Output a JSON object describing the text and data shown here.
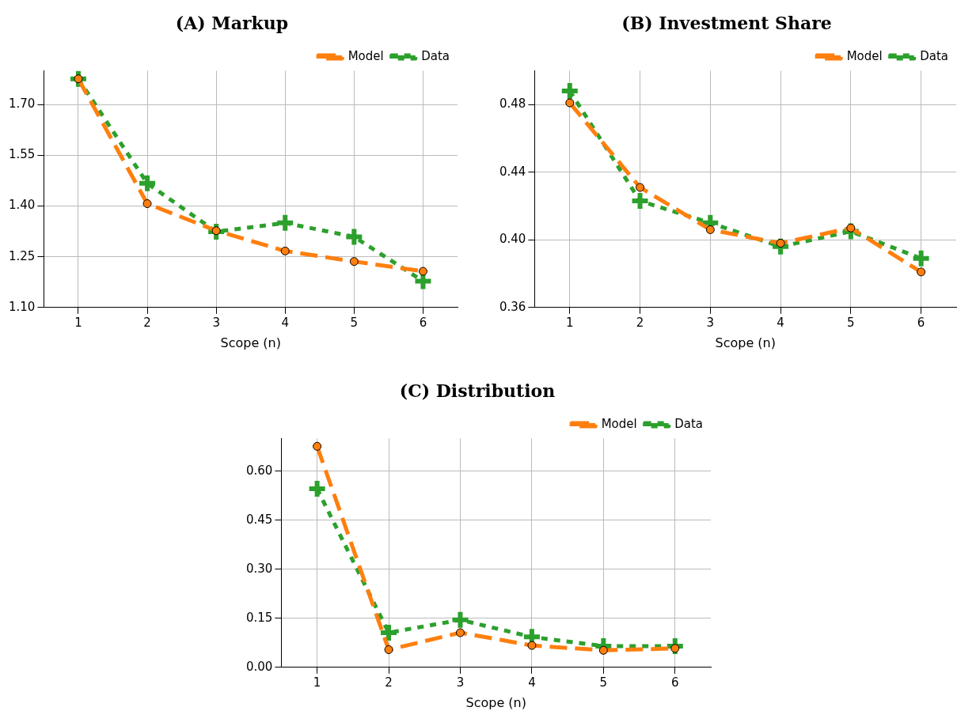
{
  "chart_data": [
    {
      "type": "line",
      "title": "(A) Markup",
      "xlabel": "Scope (n)",
      "categories": [
        "1",
        "2",
        "3",
        "4",
        "5",
        "6"
      ],
      "ylim": [
        1.1,
        1.8
      ],
      "yticks": [
        {
          "value": 1.1,
          "label": "1.10"
        },
        {
          "value": 1.25,
          "label": "1.25"
        },
        {
          "value": 1.4,
          "label": "1.40"
        },
        {
          "value": 1.55,
          "label": "1.55"
        },
        {
          "value": 1.7,
          "label": "1.70"
        }
      ],
      "grid": true,
      "legend": "top right",
      "series": [
        {
          "name": "Model",
          "color": "#ff7f0e",
          "marker": "circle",
          "line_style": "dashed",
          "values": [
            1.776,
            1.407,
            1.327,
            1.267,
            1.236,
            1.207
          ]
        },
        {
          "name": "Data",
          "color": "#2ca02c",
          "marker": "cross",
          "line_style": "dotted",
          "values": [
            1.776,
            1.467,
            1.324,
            1.35,
            1.309,
            1.178
          ]
        }
      ]
    },
    {
      "type": "line",
      "title": "(B) Investment Share",
      "xlabel": "Scope (n)",
      "categories": [
        "1",
        "2",
        "3",
        "4",
        "5",
        "6"
      ],
      "ylim": [
        0.36,
        0.5
      ],
      "yticks": [
        {
          "value": 0.36,
          "label": "0.36"
        },
        {
          "value": 0.4,
          "label": "0.40"
        },
        {
          "value": 0.44,
          "label": "0.44"
        },
        {
          "value": 0.48,
          "label": "0.48"
        }
      ],
      "grid": true,
      "legend": "top right",
      "series": [
        {
          "name": "Model",
          "color": "#ff7f0e",
          "marker": "circle",
          "line_style": "dashed",
          "values": [
            0.481,
            0.431,
            0.406,
            0.398,
            0.407,
            0.381
          ]
        },
        {
          "name": "Data",
          "color": "#2ca02c",
          "marker": "cross",
          "line_style": "dotted",
          "values": [
            0.488,
            0.423,
            0.41,
            0.396,
            0.405,
            0.389
          ]
        }
      ]
    },
    {
      "type": "line",
      "title": "(C) Distribution",
      "xlabel": "Scope (n)",
      "categories": [
        "1",
        "2",
        "3",
        "4",
        "5",
        "6"
      ],
      "ylim": [
        0,
        0.7
      ],
      "yticks": [
        {
          "value": 0,
          "label": "0.00"
        },
        {
          "value": 0.15,
          "label": "0.15"
        },
        {
          "value": 0.3,
          "label": "0.30"
        },
        {
          "value": 0.45,
          "label": "0.45"
        },
        {
          "value": 0.6,
          "label": "0.60"
        }
      ],
      "grid": true,
      "legend": "top right",
      "series": [
        {
          "name": "Model",
          "color": "#ff7f0e",
          "marker": "circle",
          "line_style": "dashed",
          "values": [
            0.676,
            0.054,
            0.106,
            0.067,
            0.052,
            0.058
          ]
        },
        {
          "name": "Data",
          "color": "#2ca02c",
          "marker": "cross",
          "line_style": "dotted",
          "values": [
            0.546,
            0.106,
            0.145,
            0.093,
            0.065,
            0.065
          ]
        }
      ]
    }
  ]
}
